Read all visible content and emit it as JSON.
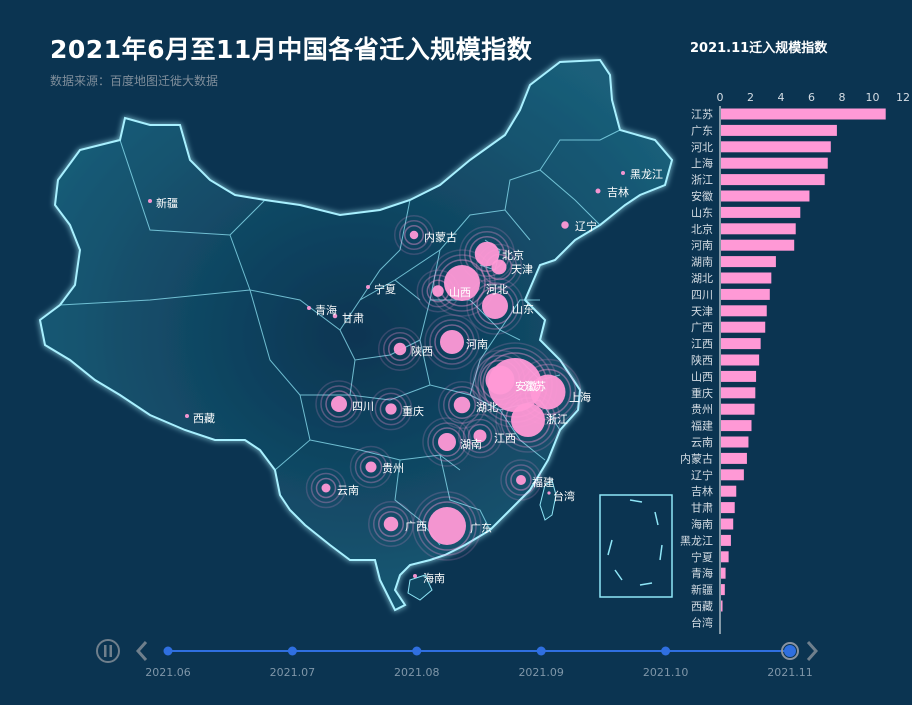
{
  "title": "2021年6月至11月中国各省迁入规模指数",
  "subtitle": "数据来源：百度地图迁徙大数据",
  "timeline": {
    "labels": [
      "2021.06",
      "2021.07",
      "2021.08",
      "2021.09",
      "2021.10",
      "2021.11"
    ],
    "current": "2021.11",
    "playing": true
  },
  "colors": {
    "background": "#0b3451",
    "map_fill": "#0f4560",
    "map_border": "#8fe6f7",
    "bubble": "#ff99d6",
    "bar": "#ff99d6",
    "timeline": "#2f6fe0"
  },
  "chart_data": [
    {
      "type": "bar",
      "orientation": "horizontal",
      "title": "2021.11迁入规模指数",
      "xlim": [
        0,
        12
      ],
      "xticks": [
        0,
        2,
        4,
        6,
        8,
        10,
        12
      ],
      "categories": [
        "江苏",
        "广东",
        "河北",
        "上海",
        "浙江",
        "安徽",
        "山东",
        "北京",
        "河南",
        "湖南",
        "湖北",
        "四川",
        "天津",
        "广西",
        "江西",
        "陕西",
        "山西",
        "重庆",
        "贵州",
        "福建",
        "云南",
        "内蒙古",
        "辽宁",
        "吉林",
        "甘肃",
        "海南",
        "黑龙江",
        "宁夏",
        "青海",
        "新疆",
        "西藏",
        "台湾"
      ],
      "values": [
        10.8,
        7.6,
        7.2,
        7.0,
        6.8,
        5.8,
        5.2,
        4.9,
        4.8,
        3.6,
        3.3,
        3.2,
        3.0,
        2.9,
        2.6,
        2.5,
        2.3,
        2.25,
        2.2,
        2.0,
        1.8,
        1.7,
        1.5,
        1.0,
        0.9,
        0.8,
        0.65,
        0.5,
        0.3,
        0.25,
        0.1,
        0
      ]
    },
    {
      "type": "scatter",
      "subtype": "bubble-map",
      "points": [
        {
          "name": "江苏",
          "value": 10.8
        },
        {
          "name": "广东",
          "value": 7.6
        },
        {
          "name": "河北",
          "value": 7.2
        },
        {
          "name": "上海",
          "value": 7.0
        },
        {
          "name": "浙江",
          "value": 6.8
        },
        {
          "name": "安徽",
          "value": 5.8
        },
        {
          "name": "山东",
          "value": 5.2
        },
        {
          "name": "北京",
          "value": 4.9
        },
        {
          "name": "河南",
          "value": 4.8
        },
        {
          "name": "湖南",
          "value": 3.6
        },
        {
          "name": "湖北",
          "value": 3.3
        },
        {
          "name": "四川",
          "value": 3.2
        },
        {
          "name": "天津",
          "value": 3.0
        },
        {
          "name": "广西",
          "value": 2.9
        },
        {
          "name": "江西",
          "value": 2.6
        },
        {
          "name": "陕西",
          "value": 2.5
        },
        {
          "name": "山西",
          "value": 2.3
        },
        {
          "name": "重庆",
          "value": 2.25
        },
        {
          "name": "贵州",
          "value": 2.2
        },
        {
          "name": "福建",
          "value": 2.0
        },
        {
          "name": "云南",
          "value": 1.8
        },
        {
          "name": "内蒙古",
          "value": 1.7
        },
        {
          "name": "辽宁",
          "value": 1.5
        },
        {
          "name": "吉林",
          "value": 1.0
        },
        {
          "name": "甘肃",
          "value": 0.9
        },
        {
          "name": "海南",
          "value": 0.8
        },
        {
          "name": "黑龙江",
          "value": 0.65
        },
        {
          "name": "宁夏",
          "value": 0.5
        },
        {
          "name": "青海",
          "value": 0.3
        },
        {
          "name": "新疆",
          "value": 0.25
        },
        {
          "name": "西藏",
          "value": 0.1
        },
        {
          "name": "台湾",
          "value": 0
        }
      ]
    }
  ]
}
